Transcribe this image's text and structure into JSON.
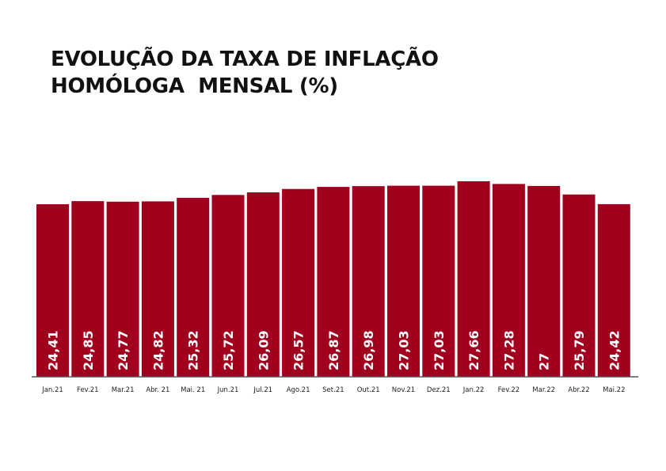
{
  "chart_data": {
    "type": "bar",
    "title_line1": "EVOLUÇÃO DA TAXA DE INFLAÇÃO",
    "title_line2": "HOMÓLOGA  MENSAL (%)",
    "categories": [
      "Jan.21",
      "Fev.21",
      "Mar.21",
      "Abr. 21",
      "Mai. 21",
      "Jun.21",
      "Jul.21",
      "Ago.21",
      "Set.21",
      "Out.21",
      "Nov.21",
      "Dez.21",
      "Jan.22",
      "Fev.22",
      "Mar.22",
      "Abr.22",
      "Mai.22"
    ],
    "values": [
      24.41,
      24.85,
      24.77,
      24.82,
      25.32,
      25.72,
      26.09,
      26.57,
      26.87,
      26.98,
      27.03,
      27.03,
      27.66,
      27.28,
      27,
      25.79,
      24.42
    ],
    "value_labels": [
      "24,41",
      "24,85",
      "24,77",
      "24,82",
      "25,32",
      "25,72",
      "26,09",
      "26,57",
      "26,87",
      "26,98",
      "27,03",
      "27,03",
      "27,66",
      "27,28",
      "27",
      "25,79",
      "24,42"
    ],
    "xlabel": "",
    "ylabel": "",
    "ylim": [
      0,
      27.66
    ],
    "grid": false,
    "bar_color": "#a0001e"
  }
}
